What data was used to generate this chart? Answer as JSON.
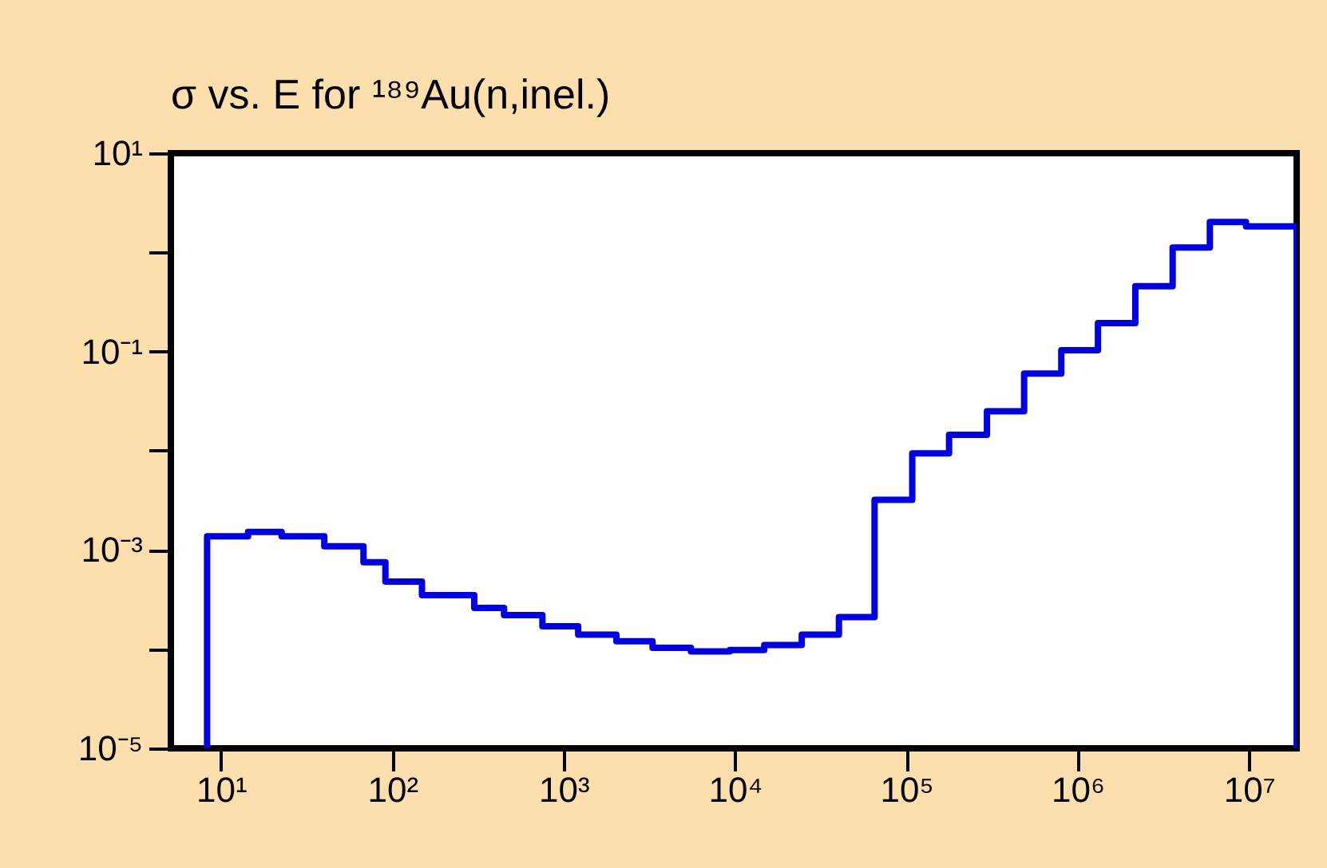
{
  "chart_data": {
    "type": "histogram",
    "title": "σ vs. E for ¹⁸⁹Au(n,inel.)",
    "bins": [
      8.3,
      14.4,
      22.6,
      40.1,
      67.9,
      91.2,
      149,
      301,
      449,
      752,
      1216,
      2032,
      3304,
      5534,
      9333,
      14830,
      24550,
      40460,
      65310,
      108400,
      177800,
      295800,
      487500,
      803500,
      1315000,
      2173000,
      3589000,
      5916000,
      9616000,
      19000000
    ],
    "values": [
      0.00137,
      0.00152,
      0.00137,
      0.00109,
      0.00075,
      0.00048,
      0.00035,
      0.00026,
      0.00022,
      0.00017,
      0.00014,
      0.00012,
      0.000103,
      9.5e-05,
      9.8e-05,
      0.00011,
      0.00014,
      0.00021,
      0.0032,
      0.0094,
      0.0145,
      0.025,
      0.06,
      0.103,
      0.194,
      0.455,
      1.12,
      2.02,
      1.83
    ],
    "color": "#0000e6",
    "log": "xy",
    "xlim": [
      5.1,
      19000000
    ],
    "ylim": [
      1e-05,
      10
    ],
    "xticks": [
      {
        "value": 10,
        "label": "10¹"
      },
      {
        "value": 100,
        "label": "10²"
      },
      {
        "value": 1000,
        "label": "10³"
      },
      {
        "value": 10000,
        "label": "10⁴"
      },
      {
        "value": 100000,
        "label": "10⁵"
      },
      {
        "value": 1000000,
        "label": "10⁶"
      },
      {
        "value": 10000000,
        "label": "10⁷"
      }
    ],
    "yticks": [
      {
        "value": 1e-05,
        "label": "10⁻⁵"
      },
      {
        "value": 0.0001,
        "label": null
      },
      {
        "value": 0.001,
        "label": "10⁻³"
      },
      {
        "value": 0.01,
        "label": null
      },
      {
        "value": 0.1,
        "label": "10⁻¹"
      },
      {
        "value": 1,
        "label": null
      },
      {
        "value": 10,
        "label": "10¹"
      }
    ]
  }
}
